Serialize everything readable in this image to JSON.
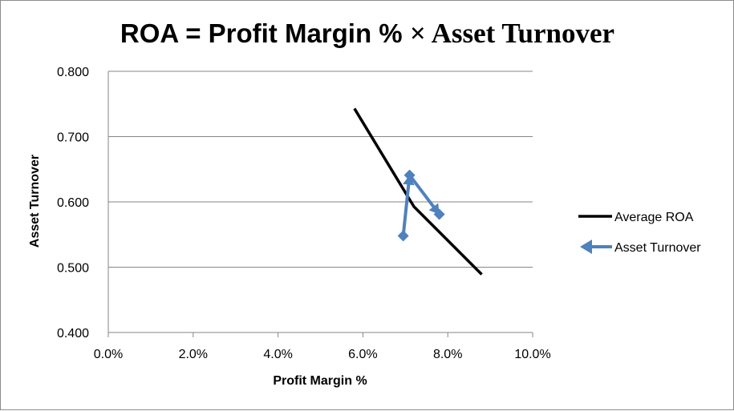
{
  "chart_data": {
    "type": "line",
    "title_main": "ROA = Profit Margin % ",
    "title_times": "× Asset Turnover",
    "xlabel": "Profit Margin %",
    "ylabel": "Asset Turnover",
    "xlim": [
      0,
      0.1
    ],
    "ylim": [
      0.4,
      0.8
    ],
    "x_ticks": [
      0.0,
      0.02,
      0.04,
      0.06,
      0.08,
      0.1
    ],
    "x_tick_labels": [
      "0.0%",
      "2.0%",
      "4.0%",
      "6.0%",
      "8.0%",
      "10.0%"
    ],
    "y_ticks": [
      0.4,
      0.5,
      0.6,
      0.7,
      0.8
    ],
    "y_tick_labels": [
      "0.400",
      "0.500",
      "0.600",
      "0.700",
      "0.800"
    ],
    "grid": "horizontal",
    "legend_position": "right",
    "series": [
      {
        "name": "Average ROA",
        "color": "#000000",
        "marker": "none",
        "points": [
          [
            0.058,
            0.743
          ],
          [
            0.072,
            0.593
          ],
          [
            0.088,
            0.489
          ]
        ]
      },
      {
        "name": "Asset Turnover",
        "color": "#4f81bd",
        "marker": "diamond-arrow",
        "points": [
          [
            0.0695,
            0.548
          ],
          [
            0.071,
            0.641
          ],
          [
            0.078,
            0.581
          ]
        ]
      }
    ]
  }
}
